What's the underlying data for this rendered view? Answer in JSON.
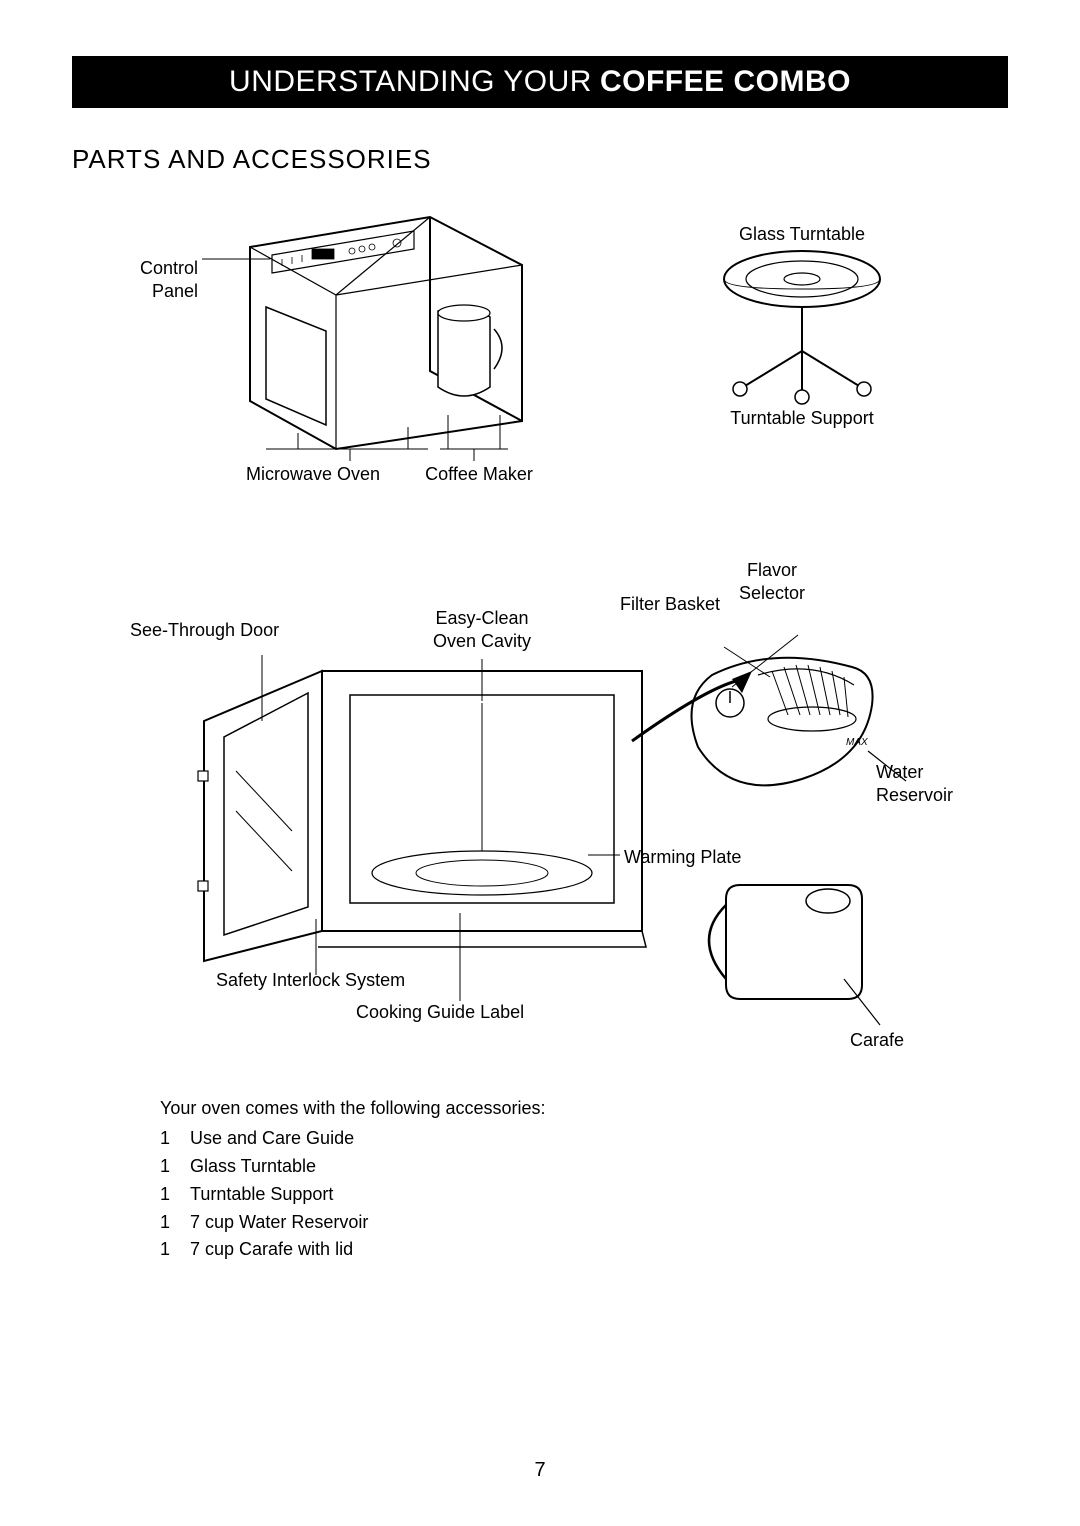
{
  "header": {
    "light_text": "UNDERSTANDING YOUR",
    "bold_text": "COFFEE COMBO",
    "bg_color": "#000000",
    "text_color": "#ffffff",
    "font_size": 30
  },
  "section_title": "PARTS AND ACCESSORIES",
  "page_number": "7",
  "diagram": {
    "labels": {
      "control_panel": "Control\nPanel",
      "glass_turntable": "Glass Turntable",
      "turntable_support": "Turntable Support",
      "microwave_oven": "Microwave Oven",
      "coffee_maker": "Coffee Maker",
      "see_through_door": "See-Through Door",
      "easy_clean": "Easy-Clean\nOven Cavity",
      "flavor_selector": "Flavor\nSelector",
      "filter_basket": "Filter Basket",
      "warming_plate": "Warming Plate",
      "water_reservoir": "Water\nReservoir",
      "safety_interlock": "Safety Interlock System",
      "cooking_guide": "Cooking Guide Label",
      "carafe": "Carafe"
    },
    "label_font_size": 18,
    "stroke_color": "#000000",
    "stroke_width": 1.2
  },
  "accessories": {
    "intro": "Your oven comes with the following accessories:",
    "items": [
      {
        "qty": "1",
        "name": "Use and Care Guide"
      },
      {
        "qty": "1",
        "name": "Glass Turntable"
      },
      {
        "qty": "1",
        "name": "Turntable Support"
      },
      {
        "qty": "1",
        "name": "7 cup Water Reservoir"
      },
      {
        "qty": "1",
        "name": "7 cup Carafe with lid"
      }
    ],
    "font_size": 18
  },
  "colors": {
    "page_bg": "#ffffff",
    "text": "#000000"
  }
}
